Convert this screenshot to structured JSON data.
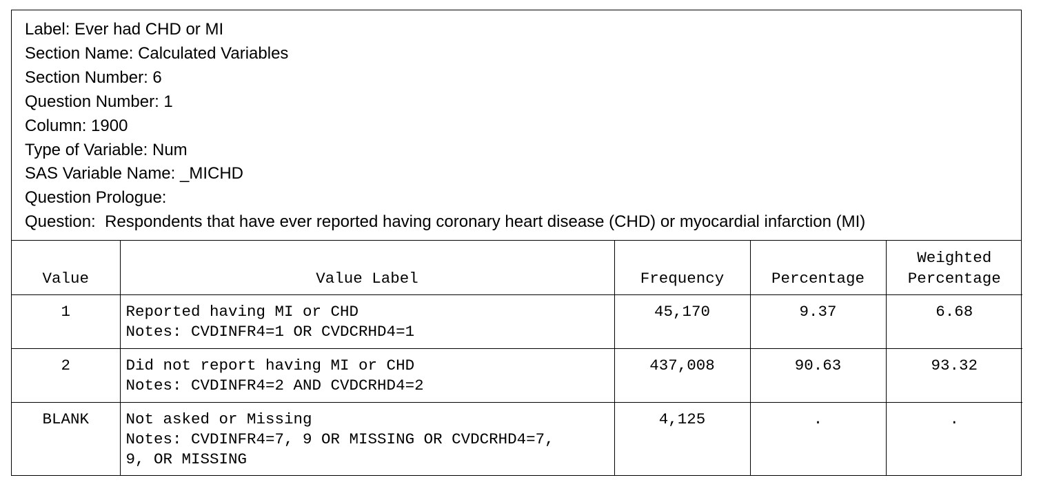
{
  "meta": {
    "label": "Label: Ever had CHD or MI",
    "section_name": "Section Name: Calculated Variables",
    "section_number": "Section Number: 6",
    "question_number": "Question Number: 1",
    "column": "Column: 1900",
    "type_of_variable": "Type of Variable: Num",
    "sas_variable_name": "SAS Variable Name: _MICHD",
    "question_prologue": "Question Prologue:",
    "question": "Question:  Respondents that have ever reported having coronary heart disease (CHD) or myocardial infarction (MI)"
  },
  "table": {
    "headers": {
      "value": "Value",
      "value_label": "Value Label",
      "frequency": "Frequency",
      "percentage": "Percentage",
      "weighted_line1": "Weighted",
      "weighted_line2": "Percentage"
    },
    "rows": [
      {
        "value": "1",
        "label": "Reported having MI or CHD",
        "notes": "Notes: CVDINFR4=1 OR CVDCRHD4=1",
        "notes_cont": "",
        "frequency": "45,170",
        "percentage": "9.37",
        "weighted": "6.68"
      },
      {
        "value": "2",
        "label": "Did not report having MI or CHD",
        "notes": "Notes: CVDINFR4=2 AND CVDCRHD4=2",
        "notes_cont": "",
        "frequency": "437,008",
        "percentage": "90.63",
        "weighted": "93.32"
      },
      {
        "value": "BLANK",
        "label": "Not asked or Missing",
        "notes": "Notes: CVDINFR4=7, 9 OR MISSING OR CVDCRHD4=7,",
        "notes_cont": "9, OR MISSING",
        "frequency": "4,125",
        "percentage": ".",
        "weighted": "."
      }
    ]
  }
}
